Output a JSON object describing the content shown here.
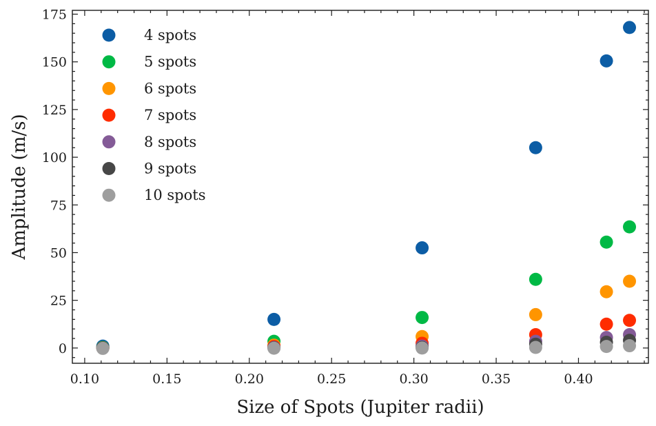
{
  "chart_data": {
    "type": "scatter",
    "title": "",
    "xlabel": "Size of Spots (Jupiter radii)",
    "ylabel": "Amplitude (m/s)",
    "xlim": [
      0.0925,
      0.4425
    ],
    "ylim": [
      -8,
      177
    ],
    "xticks": [
      0.1,
      0.15,
      0.2,
      0.25,
      0.3,
      0.35,
      0.4
    ],
    "xtick_labels": [
      "0.10",
      "0.15",
      "0.20",
      "0.25",
      "0.30",
      "0.35",
      "0.40"
    ],
    "yticks": [
      0,
      25,
      50,
      75,
      100,
      125,
      150,
      175
    ],
    "ytick_labels": [
      "0",
      "25",
      "50",
      "75",
      "100",
      "125",
      "150",
      "175"
    ],
    "grid": false,
    "legend_position": "top-left",
    "x": [
      0.111,
      0.215,
      0.305,
      0.374,
      0.417,
      0.431
    ],
    "series": [
      {
        "name": "4 spots",
        "color": "#0c5da5",
        "values": [
          1.0,
          15.0,
          52.5,
          105.0,
          150.5,
          168.0
        ]
      },
      {
        "name": "5 spots",
        "color": "#00b945",
        "values": [
          0.3,
          3.5,
          16.0,
          36.0,
          55.5,
          63.5
        ]
      },
      {
        "name": "6 spots",
        "color": "#ff9500",
        "values": [
          0.1,
          1.5,
          6.0,
          17.5,
          29.5,
          35.0
        ]
      },
      {
        "name": "7 spots",
        "color": "#ff2c00",
        "values": [
          0.0,
          0.8,
          2.5,
          7.0,
          12.5,
          14.5
        ]
      },
      {
        "name": "8 spots",
        "color": "#845b97",
        "values": [
          0.0,
          0.3,
          1.0,
          3.5,
          5.5,
          7.0
        ]
      },
      {
        "name": "9 spots",
        "color": "#474747",
        "values": [
          0.0,
          0.1,
          0.3,
          2.0,
          3.0,
          4.0
        ]
      },
      {
        "name": "10 spots",
        "color": "#9e9e9e",
        "values": [
          -0.2,
          -0.1,
          0.0,
          0.3,
          0.8,
          1.2
        ]
      }
    ]
  }
}
